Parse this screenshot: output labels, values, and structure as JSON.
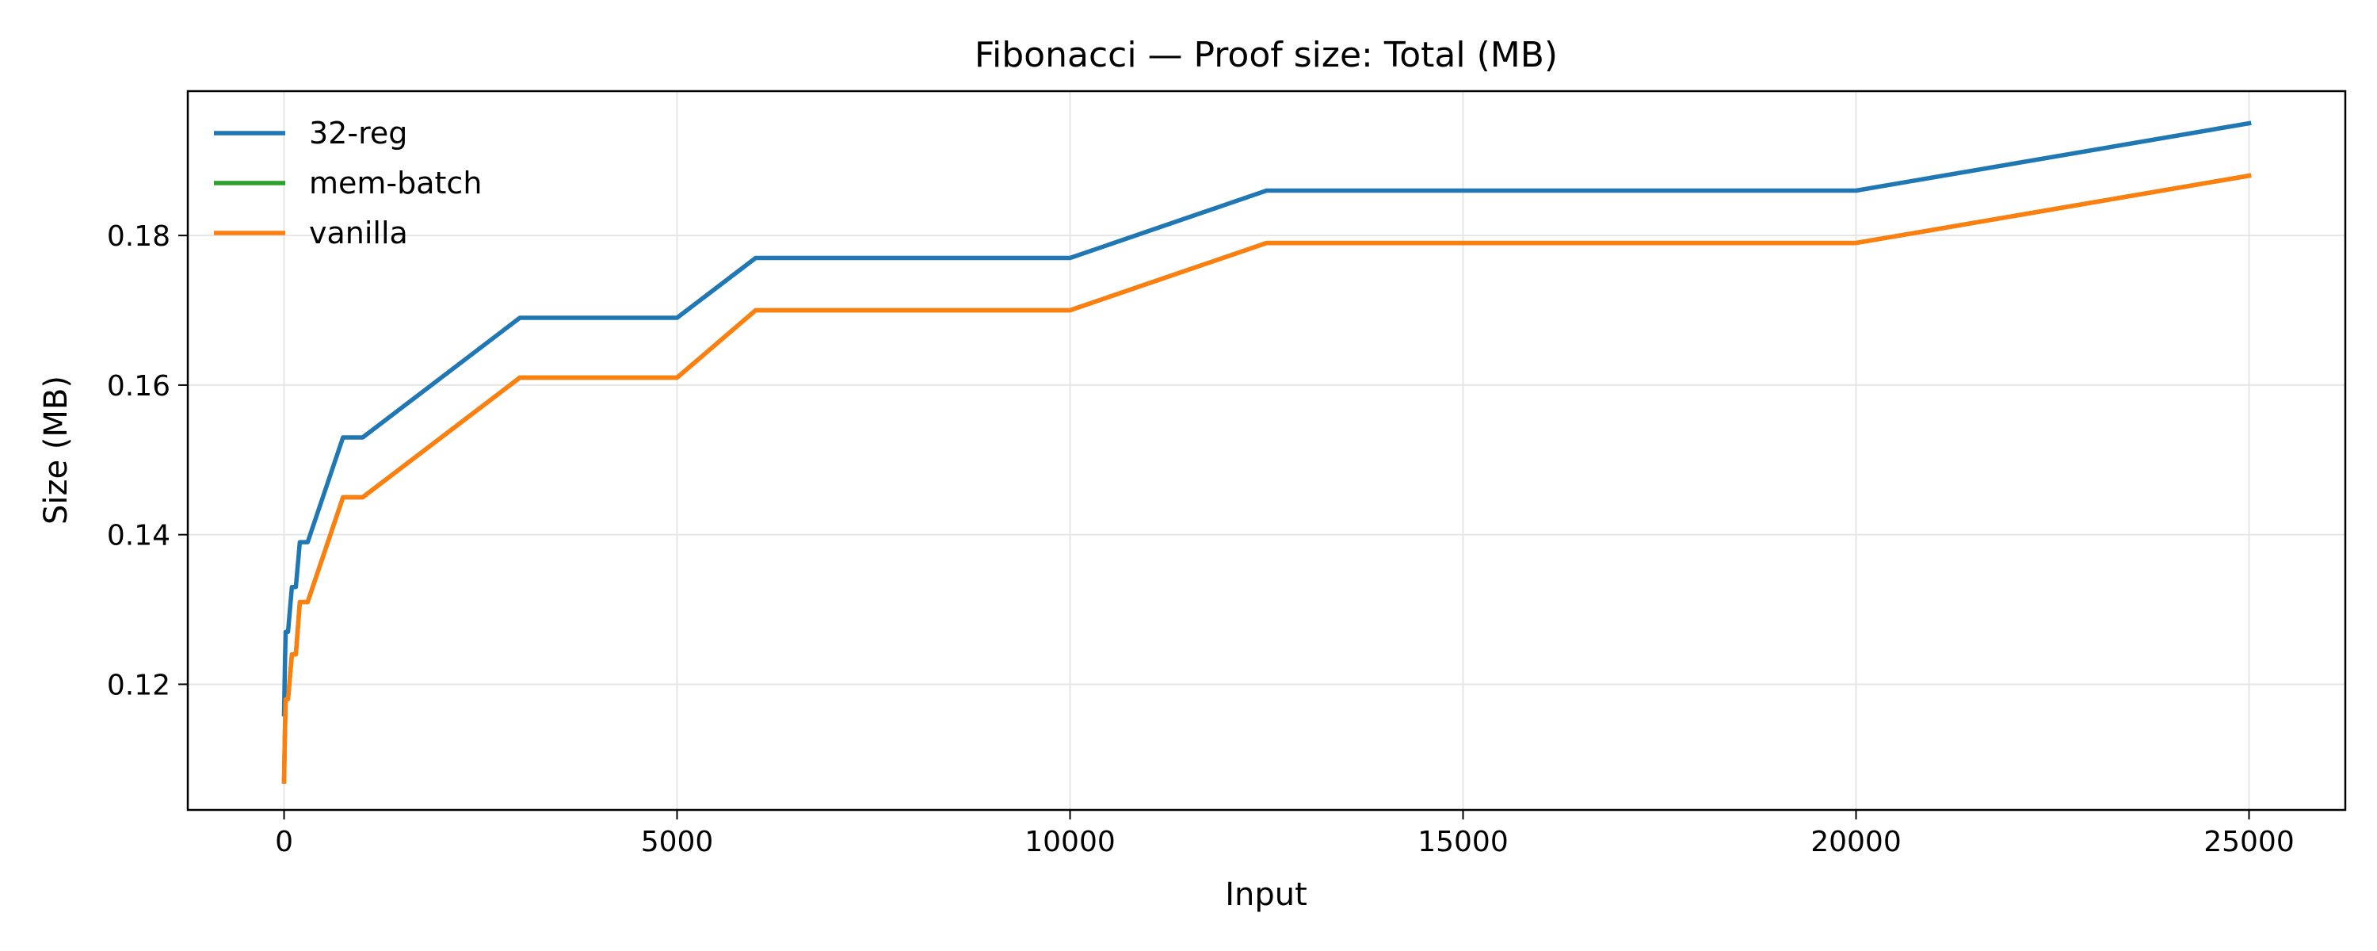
{
  "chart_data": {
    "type": "line",
    "title": "Fibonacci — Proof size: Total (MB)",
    "xlabel": "Input",
    "ylabel": "Size (MB)",
    "xlim": [
      -1225,
      26225
    ],
    "ylim": [
      0.1032,
      0.1993
    ],
    "x_ticks": [
      0,
      5000,
      10000,
      15000,
      20000,
      25000
    ],
    "x_tick_labels": [
      "0",
      "5000",
      "10000",
      "15000",
      "20000",
      "25000"
    ],
    "y_ticks": [
      0.12,
      0.14,
      0.16,
      0.18
    ],
    "y_tick_labels": [
      "0.12",
      "0.14",
      "0.16",
      "0.18"
    ],
    "grid": true,
    "legend_position": "upper left",
    "series": [
      {
        "name": "32-reg",
        "color": "#1f77b4",
        "x": [
          0,
          10,
          20,
          50,
          100,
          150,
          200,
          300,
          750,
          1000,
          3000,
          5000,
          6000,
          10000,
          12500,
          20000,
          25000
        ],
        "y": [
          0.116,
          0.122,
          0.127,
          0.127,
          0.133,
          0.133,
          0.139,
          0.139,
          0.153,
          0.153,
          0.169,
          0.169,
          0.177,
          0.177,
          0.186,
          0.186,
          0.195
        ]
      },
      {
        "name": "mem-batch",
        "color": "#2ca02c",
        "x": [
          0,
          10,
          20,
          50,
          100,
          150,
          200,
          300,
          750,
          1000,
          3000,
          5000,
          6000,
          10000,
          12500,
          20000,
          25000
        ],
        "y": [
          0.107,
          0.113,
          0.118,
          0.118,
          0.124,
          0.124,
          0.131,
          0.131,
          0.145,
          0.145,
          0.161,
          0.161,
          0.17,
          0.17,
          0.179,
          0.179,
          0.188
        ]
      },
      {
        "name": "vanilla",
        "color": "#ff7f0e",
        "x": [
          0,
          10,
          20,
          50,
          100,
          150,
          200,
          300,
          750,
          1000,
          3000,
          5000,
          6000,
          10000,
          12500,
          20000,
          25000
        ],
        "y": [
          0.107,
          0.113,
          0.118,
          0.118,
          0.124,
          0.124,
          0.131,
          0.131,
          0.145,
          0.145,
          0.161,
          0.161,
          0.17,
          0.17,
          0.179,
          0.179,
          0.188
        ]
      }
    ]
  }
}
